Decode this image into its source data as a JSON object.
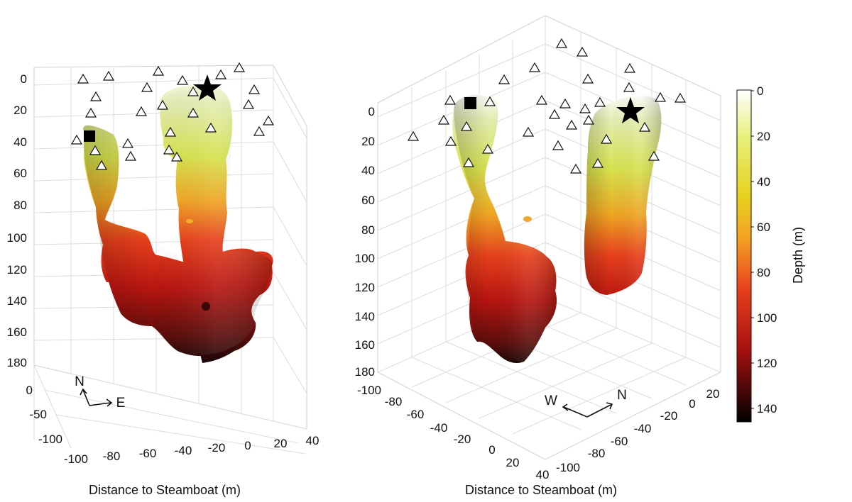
{
  "chart_data": [
    {
      "type": "3d-surface",
      "panel": "left",
      "xlabel": "Distance to Steamboat (m)",
      "depth_ticks": [
        "0",
        "20",
        "40",
        "60",
        "80",
        "100",
        "120",
        "140",
        "160",
        "180"
      ],
      "x_ticks": [
        "-100",
        "-80",
        "-60",
        "-40",
        "-20",
        "0",
        "20",
        "40"
      ],
      "y_ticks": [
        "0",
        "-50",
        "-100"
      ],
      "orientation": {
        "n": "N",
        "e": "E"
      },
      "depth_range": [
        0,
        180
      ],
      "x_range": [
        -100,
        40
      ],
      "y_range": [
        -100,
        0
      ],
      "markers": {
        "square": {
          "x": -82,
          "y": -48,
          "depth": 32
        },
        "star": {
          "x": -6,
          "y": -56,
          "depth": 8
        }
      },
      "grid": true
    },
    {
      "type": "3d-surface",
      "panel": "right",
      "xlabel": "Distance to Steamboat (m)",
      "depth_ticks": [
        "0",
        "20",
        "40",
        "60",
        "80",
        "100",
        "120",
        "140",
        "160",
        "180"
      ],
      "x_ticks": [
        "-100",
        "-80",
        "-60",
        "-40",
        "-20",
        "0",
        "20",
        "40"
      ],
      "y_ticks": [
        "20",
        "0",
        "-20",
        "-40",
        "-60",
        "-80",
        "-100"
      ],
      "orientation": {
        "w": "W",
        "n": "N"
      },
      "depth_range": [
        0,
        180
      ],
      "markers": {
        "square": {
          "x": -70,
          "y": -20,
          "depth": 0
        },
        "star": {
          "x": 5,
          "y": -30,
          "depth": 0
        }
      },
      "grid": true
    }
  ],
  "colorbar": {
    "label": "Depth (m)",
    "ticks": [
      "0",
      "20",
      "40",
      "60",
      "80",
      "100",
      "120",
      "140"
    ],
    "range": [
      0,
      145
    ],
    "colors": [
      "#ffffff",
      "#e8f07c",
      "#f5b126",
      "#e8401c",
      "#a8100f",
      "#000000"
    ]
  }
}
